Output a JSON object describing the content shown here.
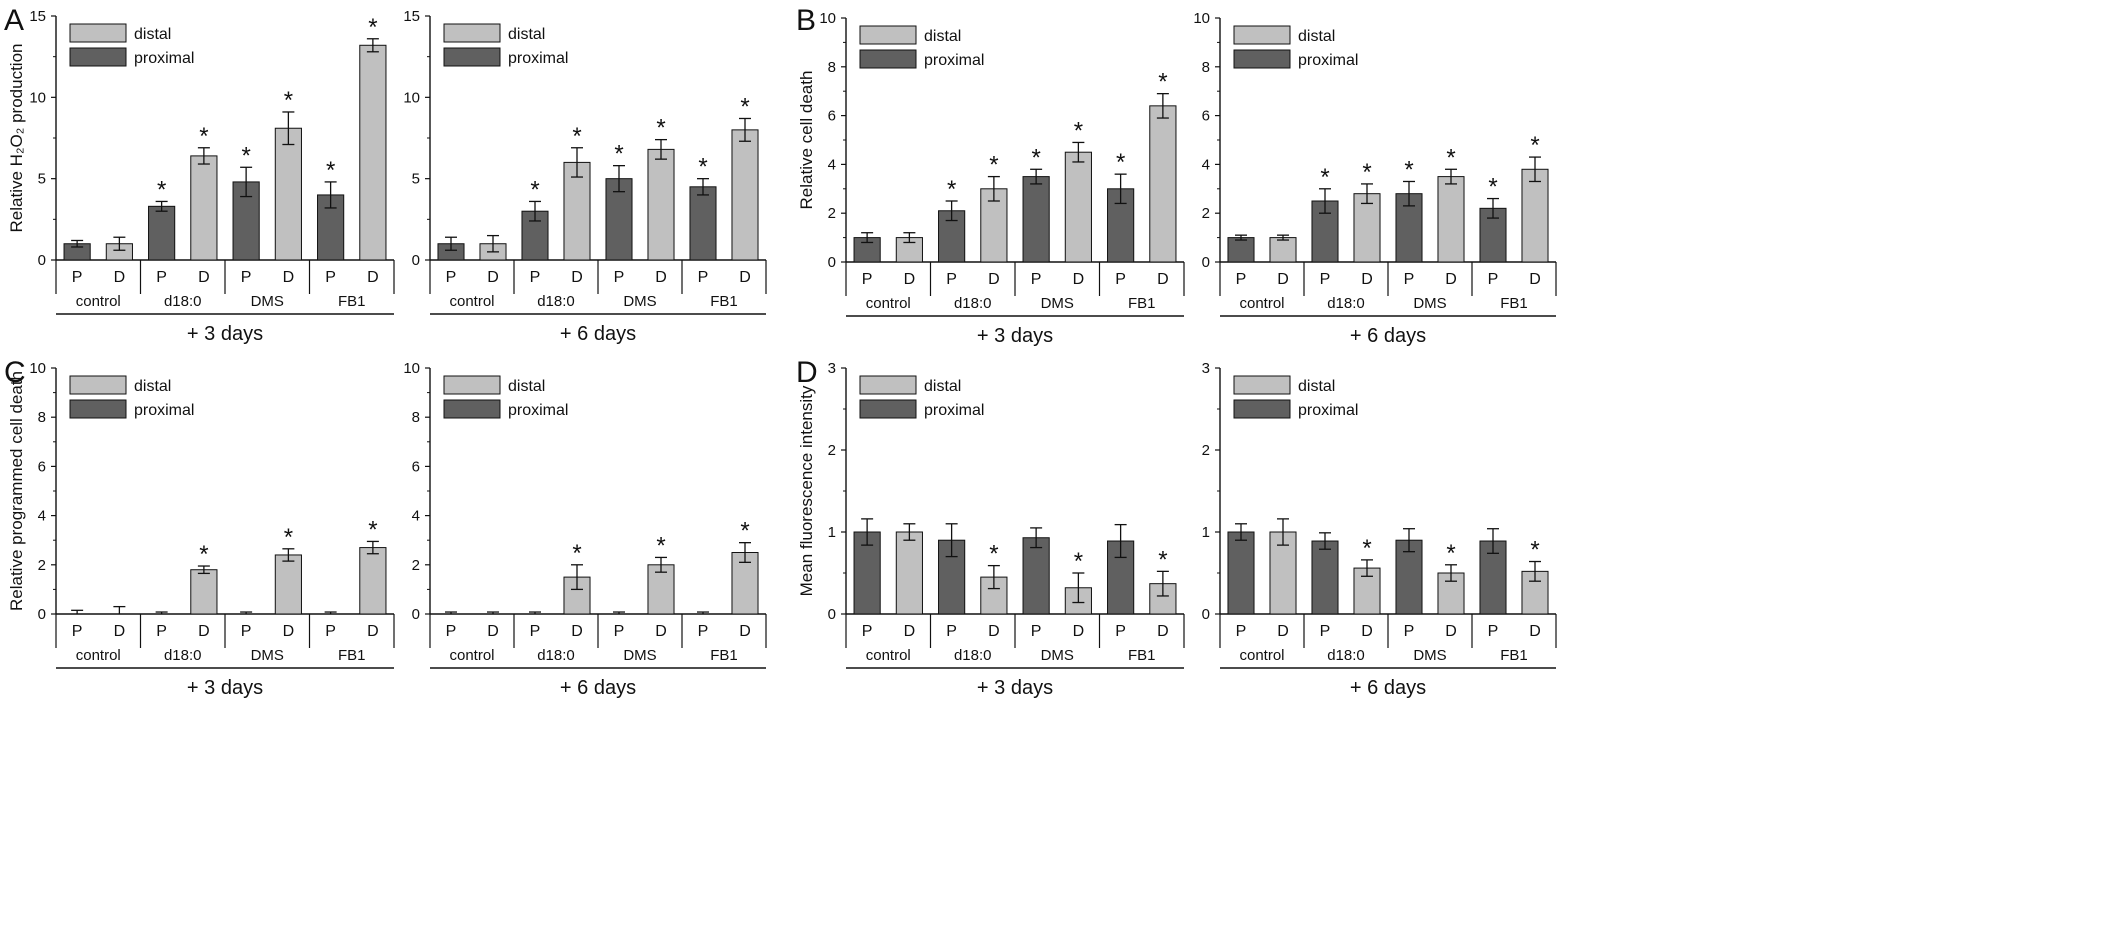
{
  "figure": {
    "panel_letters": [
      "A",
      "B",
      "C",
      "D"
    ],
    "colors": {
      "distal": "#c0c0c0",
      "proximal": "#606060",
      "axis": "#111111"
    }
  },
  "chart_data": [
    {
      "type": "bar",
      "panel": "A",
      "show_letter": true,
      "ylabel": "Relative H₂O₂ production",
      "ylim": [
        0,
        15
      ],
      "yticks": [
        0,
        5,
        10,
        15
      ],
      "categories": [
        "P",
        "D",
        "P",
        "D",
        "P",
        "D",
        "P",
        "D"
      ],
      "groups": [
        "control",
        "d18:0",
        "DMS",
        "FB1"
      ],
      "time": "+ 3 days",
      "legend": [
        "distal",
        "proximal"
      ],
      "bar_types": [
        "proximal",
        "distal",
        "proximal",
        "distal",
        "proximal",
        "distal",
        "proximal",
        "distal"
      ],
      "values": [
        1.0,
        1.0,
        3.3,
        6.4,
        4.8,
        8.1,
        4.0,
        13.2
      ],
      "errors": [
        0.2,
        0.4,
        0.3,
        0.5,
        0.9,
        1.0,
        0.8,
        0.4
      ],
      "significant": [
        false,
        false,
        true,
        true,
        true,
        true,
        true,
        true
      ]
    },
    {
      "type": "bar",
      "panel": "A",
      "show_letter": false,
      "ylabel": "",
      "ylim": [
        0,
        15
      ],
      "yticks": [
        0,
        5,
        10,
        15
      ],
      "categories": [
        "P",
        "D",
        "P",
        "D",
        "P",
        "D",
        "P",
        "D"
      ],
      "groups": [
        "control",
        "d18:0",
        "DMS",
        "FB1"
      ],
      "time": "+ 6 days",
      "legend": [
        "distal",
        "proximal"
      ],
      "bar_types": [
        "proximal",
        "distal",
        "proximal",
        "distal",
        "proximal",
        "distal",
        "proximal",
        "distal"
      ],
      "values": [
        1.0,
        1.0,
        3.0,
        6.0,
        5.0,
        6.8,
        4.5,
        8.0
      ],
      "errors": [
        0.4,
        0.5,
        0.6,
        0.9,
        0.8,
        0.6,
        0.5,
        0.7
      ],
      "significant": [
        false,
        false,
        true,
        true,
        true,
        true,
        true,
        true
      ]
    },
    {
      "type": "bar",
      "panel": "B",
      "show_letter": true,
      "ylabel": "Relative cell death",
      "ylim": [
        0,
        10
      ],
      "yticks": [
        0,
        2,
        4,
        6,
        8,
        10
      ],
      "categories": [
        "P",
        "D",
        "P",
        "D",
        "P",
        "D",
        "P",
        "D"
      ],
      "groups": [
        "control",
        "d18:0",
        "DMS",
        "FB1"
      ],
      "time": "+ 3 days",
      "legend": [
        "distal",
        "proximal"
      ],
      "bar_types": [
        "proximal",
        "distal",
        "proximal",
        "distal",
        "proximal",
        "distal",
        "proximal",
        "distal"
      ],
      "values": [
        1.0,
        1.0,
        2.1,
        3.0,
        3.5,
        4.5,
        3.0,
        6.4
      ],
      "errors": [
        0.2,
        0.2,
        0.4,
        0.5,
        0.3,
        0.4,
        0.6,
        0.5
      ],
      "significant": [
        false,
        false,
        true,
        true,
        true,
        true,
        true,
        true
      ]
    },
    {
      "type": "bar",
      "panel": "B",
      "show_letter": false,
      "ylabel": "",
      "ylim": [
        0,
        10
      ],
      "yticks": [
        0,
        2,
        4,
        6,
        8,
        10
      ],
      "categories": [
        "P",
        "D",
        "P",
        "D",
        "P",
        "D",
        "P",
        "D"
      ],
      "groups": [
        "control",
        "d18:0",
        "DMS",
        "FB1"
      ],
      "time": "+ 6 days",
      "legend": [
        "distal",
        "proximal"
      ],
      "bar_types": [
        "proximal",
        "distal",
        "proximal",
        "distal",
        "proximal",
        "distal",
        "proximal",
        "distal"
      ],
      "values": [
        1.0,
        1.0,
        2.5,
        2.8,
        2.8,
        3.5,
        2.2,
        3.8
      ],
      "errors": [
        0.1,
        0.1,
        0.5,
        0.4,
        0.5,
        0.3,
        0.4,
        0.5
      ],
      "significant": [
        false,
        false,
        true,
        true,
        true,
        true,
        true,
        true
      ]
    },
    {
      "type": "bar",
      "panel": "C",
      "show_letter": true,
      "ylabel": "Relative programmed cell death",
      "ylim": [
        0,
        10
      ],
      "yticks": [
        0,
        2,
        4,
        6,
        8,
        10
      ],
      "categories": [
        "P",
        "D",
        "P",
        "D",
        "P",
        "D",
        "P",
        "D"
      ],
      "groups": [
        "control",
        "d18:0",
        "DMS",
        "FB1"
      ],
      "time": "+ 3 days",
      "legend": [
        "distal",
        "proximal"
      ],
      "bar_types": [
        "proximal",
        "distal",
        "proximal",
        "distal",
        "proximal",
        "distal",
        "proximal",
        "distal"
      ],
      "values": [
        0.0,
        0.0,
        0.0,
        1.8,
        0.0,
        2.4,
        0.0,
        2.7
      ],
      "errors": [
        0.15,
        0.3,
        0.08,
        0.15,
        0.08,
        0.25,
        0.08,
        0.25
      ],
      "significant": [
        false,
        false,
        false,
        true,
        false,
        true,
        false,
        true
      ]
    },
    {
      "type": "bar",
      "panel": "C",
      "show_letter": false,
      "ylabel": "",
      "ylim": [
        0,
        10
      ],
      "yticks": [
        0,
        2,
        4,
        6,
        8,
        10
      ],
      "categories": [
        "P",
        "D",
        "P",
        "D",
        "P",
        "D",
        "P",
        "D"
      ],
      "groups": [
        "control",
        "d18:0",
        "DMS",
        "FB1"
      ],
      "time": "+ 6 days",
      "legend": [
        "distal",
        "proximal"
      ],
      "bar_types": [
        "proximal",
        "distal",
        "proximal",
        "distal",
        "proximal",
        "distal",
        "proximal",
        "distal"
      ],
      "values": [
        0.0,
        0.0,
        0.0,
        1.5,
        0.0,
        2.0,
        0.0,
        2.5
      ],
      "errors": [
        0.08,
        0.08,
        0.08,
        0.5,
        0.08,
        0.3,
        0.08,
        0.4
      ],
      "significant": [
        false,
        false,
        false,
        true,
        false,
        true,
        false,
        true
      ]
    },
    {
      "type": "bar",
      "panel": "D",
      "show_letter": true,
      "ylabel": "Mean fluorescence intensity",
      "ylim": [
        0,
        3
      ],
      "yticks": [
        0,
        1,
        2,
        3
      ],
      "categories": [
        "P",
        "D",
        "P",
        "D",
        "P",
        "D",
        "P",
        "D"
      ],
      "groups": [
        "control",
        "d18:0",
        "DMS",
        "FB1"
      ],
      "time": "+ 3 days",
      "legend": [
        "distal",
        "proximal"
      ],
      "bar_types": [
        "proximal",
        "distal",
        "proximal",
        "distal",
        "proximal",
        "distal",
        "proximal",
        "distal"
      ],
      "values": [
        1.0,
        1.0,
        0.9,
        0.45,
        0.93,
        0.32,
        0.89,
        0.37
      ],
      "errors": [
        0.16,
        0.1,
        0.2,
        0.14,
        0.12,
        0.18,
        0.2,
        0.15
      ],
      "significant": [
        false,
        false,
        false,
        true,
        false,
        true,
        false,
        true
      ]
    },
    {
      "type": "bar",
      "panel": "D",
      "show_letter": false,
      "ylabel": "",
      "ylim": [
        0,
        3
      ],
      "yticks": [
        0,
        1,
        2,
        3
      ],
      "categories": [
        "P",
        "D",
        "P",
        "D",
        "P",
        "D",
        "P",
        "D"
      ],
      "groups": [
        "control",
        "d18:0",
        "DMS",
        "FB1"
      ],
      "time": "+ 6 days",
      "legend": [
        "distal",
        "proximal"
      ],
      "bar_types": [
        "proximal",
        "distal",
        "proximal",
        "distal",
        "proximal",
        "distal",
        "proximal",
        "distal"
      ],
      "values": [
        1.0,
        1.0,
        0.89,
        0.56,
        0.9,
        0.5,
        0.89,
        0.52
      ],
      "errors": [
        0.1,
        0.16,
        0.1,
        0.1,
        0.14,
        0.1,
        0.15,
        0.12
      ],
      "significant": [
        false,
        false,
        false,
        true,
        false,
        true,
        false,
        true
      ]
    }
  ]
}
